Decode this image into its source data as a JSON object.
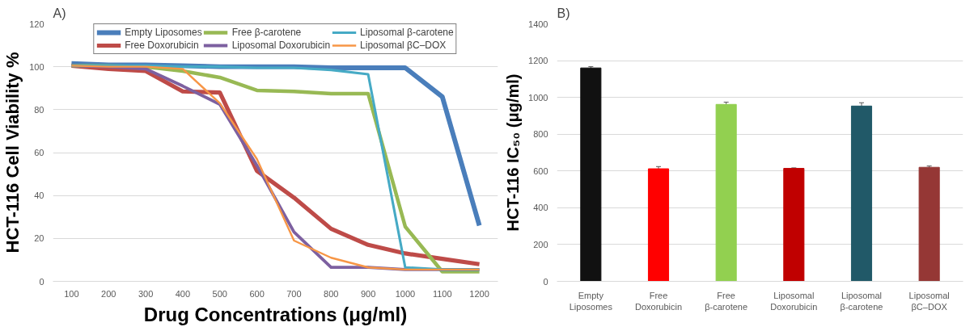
{
  "chart_data": [
    {
      "type": "line",
      "title": "A)",
      "xlabel": "Drug Concentrations (μg/ml)",
      "ylabel": "HCT-116 Cell Viability %",
      "categories": [
        "100",
        "200",
        "300",
        "400",
        "500",
        "600",
        "700",
        "800",
        "900",
        "1000",
        "1100",
        "1200"
      ],
      "ylim": [
        0,
        120
      ],
      "yticks": [
        0,
        20,
        40,
        60,
        80,
        100,
        120
      ],
      "grid": "y",
      "legend": "top",
      "series": [
        {
          "name": "Empty Liposomes",
          "color": "#4a7ebb",
          "values": [
            101.5,
            100.8,
            100.8,
            100.5,
            100,
            100,
            100,
            99.5,
            99.5,
            99.5,
            86,
            26
          ]
        },
        {
          "name": "Free Doxorubicin",
          "color": "#be4b48",
          "values": [
            100.5,
            99,
            98,
            88.5,
            88,
            51.5,
            39,
            24.5,
            17,
            13,
            10.5,
            8
          ]
        },
        {
          "name": "Free β-carotene",
          "color": "#98b954",
          "values": [
            100.5,
            100.3,
            100,
            98,
            95,
            89,
            88.5,
            87.5,
            87.5,
            25.5,
            4.5,
            4.5
          ]
        },
        {
          "name": "Liposomal Doxorubicin",
          "color": "#7d60a0",
          "values": [
            100.5,
            100,
            99,
            91,
            82.5,
            54,
            23,
            6.5,
            6.5,
            5.5,
            5.5,
            5.5
          ]
        },
        {
          "name": "Liposomal β-carotene",
          "color": "#46aac5",
          "values": [
            100.5,
            100.5,
            100.5,
            100,
            100,
            99.5,
            99.5,
            98.5,
            96.5,
            6.5,
            5.5,
            5.5
          ]
        },
        {
          "name": "Liposomal βC–DOX",
          "color": "#f79646",
          "values": [
            100.5,
            100,
            100,
            99,
            83,
            57,
            19,
            11,
            6.5,
            5.5,
            5.5,
            5.5
          ]
        }
      ]
    },
    {
      "type": "bar",
      "title": "B)",
      "ylabel": "HCT-116 IC₅₀ (μg/ml)",
      "categories": [
        "Empty Liposomes",
        "Free Doxorubicin",
        "Free β-carotene",
        "Liposomal Doxorubicin",
        "Liposomal β-carotene",
        "Liposomal βC–DOX"
      ],
      "values": [
        1160,
        612,
        962,
        614,
        953,
        620
      ],
      "errors": [
        7,
        12,
        12,
        3,
        18,
        7
      ],
      "colors": [
        "#111111",
        "#ff0000",
        "#92d050",
        "#c00000",
        "#215968",
        "#953735"
      ],
      "ylim": [
        0,
        1400
      ],
      "yticks": [
        0,
        200,
        400,
        600,
        800,
        1000,
        1200,
        1400
      ],
      "grid": "y"
    }
  ]
}
